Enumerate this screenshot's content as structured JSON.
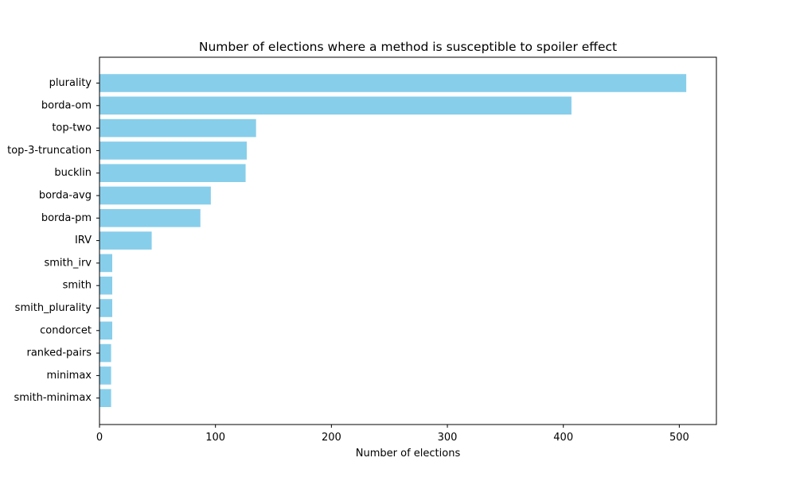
{
  "chart_data": {
    "type": "bar",
    "orientation": "horizontal",
    "title": "Number of elections where a method is susceptible to spoiler effect",
    "xlabel": "Number of elections",
    "ylabel": "",
    "categories": [
      "plurality",
      "borda-om",
      "top-two",
      "top-3-truncation",
      "bucklin",
      "borda-avg",
      "borda-pm",
      "IRV",
      "smith_irv",
      "smith",
      "smith_plurality",
      "condorcet",
      "ranked-pairs",
      "minimax",
      "smith-minimax"
    ],
    "values": [
      506,
      407,
      135,
      127,
      126,
      96,
      87,
      45,
      11,
      11,
      11,
      11,
      10,
      10,
      10
    ],
    "xlim": [
      0,
      532
    ],
    "xticks": [
      0,
      100,
      200,
      300,
      400,
      500
    ],
    "bar_color": "#87ceeb",
    "grid": false,
    "legend": "none"
  }
}
